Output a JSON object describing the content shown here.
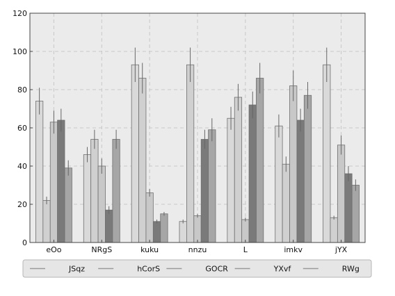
{
  "chart_data": {
    "type": "bar",
    "title": "",
    "xlabel": "",
    "ylabel": "",
    "ylim": [
      0,
      120
    ],
    "yticks": [
      0,
      20,
      40,
      60,
      80,
      100,
      120
    ],
    "grid": true,
    "legend_position": "bottom",
    "categories": [
      "eOo",
      "NRgS",
      "kuku",
      "nnzu",
      "L",
      "imkv",
      "jYX"
    ],
    "series": [
      {
        "name": "JSqz",
        "color": "#d9d9d9",
        "values": [
          74,
          46,
          93,
          11,
          65,
          61,
          93
        ],
        "errors": [
          7,
          4,
          9,
          1,
          6,
          6,
          9
        ]
      },
      {
        "name": "hCorS",
        "color": "#d0d0d0",
        "values": [
          22,
          54,
          86,
          93,
          76,
          41,
          13
        ],
        "errors": [
          2,
          5,
          8,
          9,
          7,
          4,
          1
        ]
      },
      {
        "name": "GOCR",
        "color": "#c8c8c8",
        "values": [
          63,
          40,
          26,
          14,
          12,
          82,
          51
        ],
        "errors": [
          6,
          4,
          2,
          1,
          1,
          8,
          5
        ]
      },
      {
        "name": "YXvf",
        "color": "#7a7a7a",
        "values": [
          64,
          17,
          11,
          54,
          72,
          64,
          36
        ],
        "errors": [
          6,
          2,
          1,
          5,
          7,
          6,
          4
        ]
      },
      {
        "name": "RWg",
        "color": "#a6a6a6",
        "values": [
          39,
          54,
          15,
          59,
          86,
          77,
          30
        ],
        "errors": [
          4,
          5,
          1,
          6,
          8,
          7,
          3
        ]
      }
    ]
  }
}
